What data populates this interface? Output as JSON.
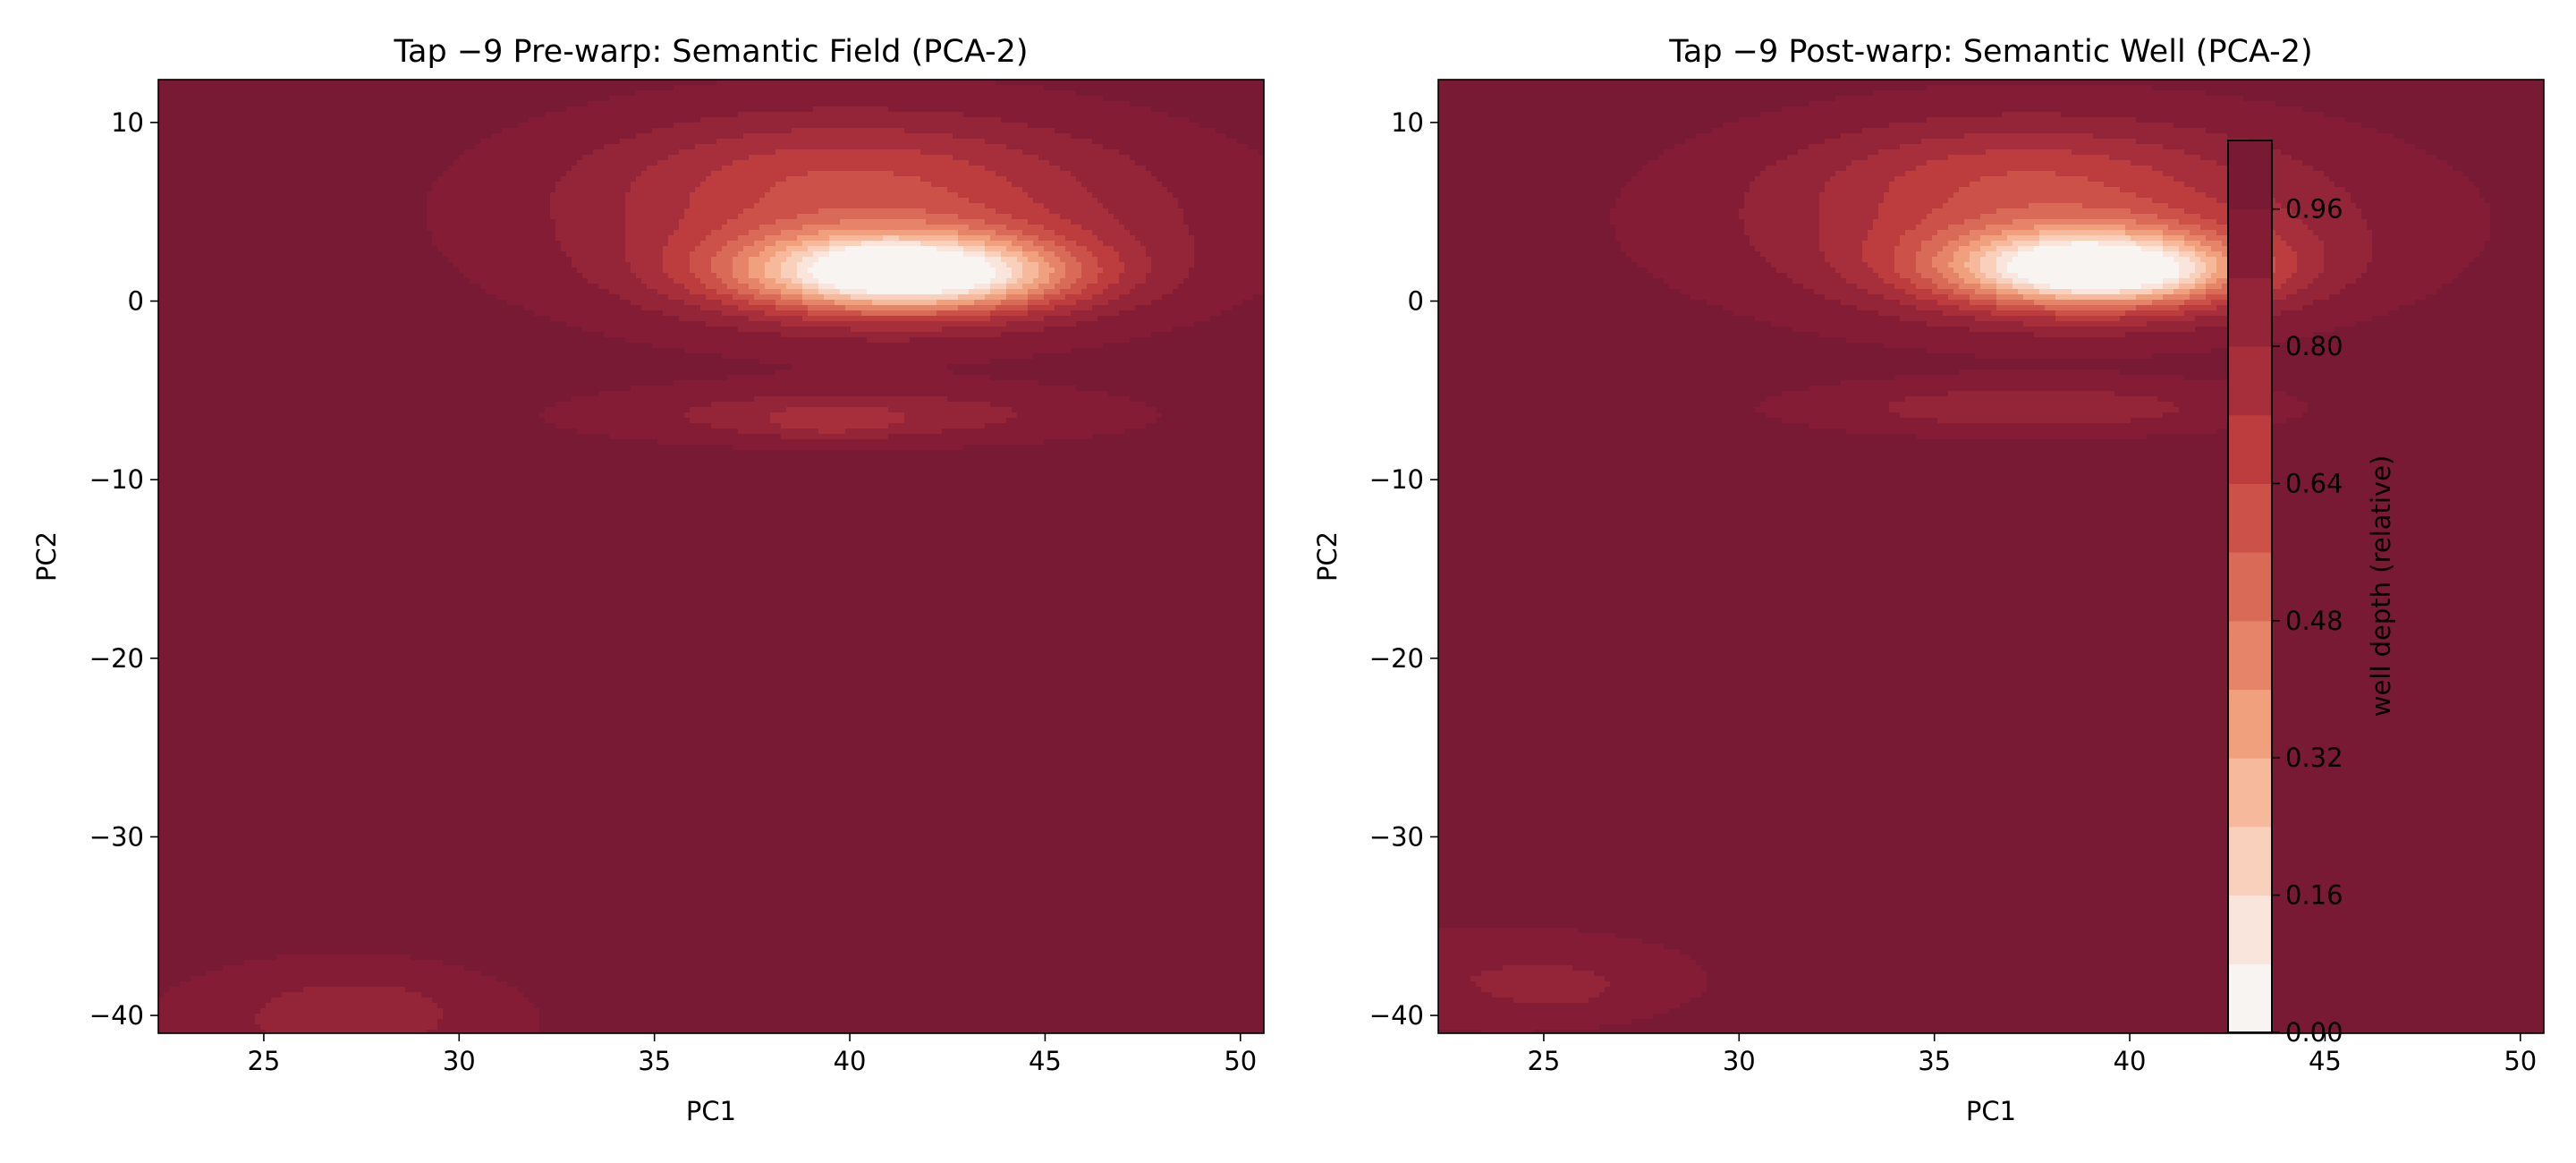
{
  "chart_data": [
    {
      "type": "contour",
      "title": "Tap −9 Pre-warp: Semantic Field (PCA-2)",
      "xlabel": "PC1",
      "ylabel": "PC2",
      "xlim": [
        22.3,
        50.6
      ],
      "ylim": [
        -41.0,
        12.4
      ],
      "xticks": [
        25,
        30,
        35,
        40,
        45,
        50
      ],
      "yticks": [
        10,
        0,
        -10,
        -20,
        -30,
        -40
      ],
      "grid": false,
      "peaks": [
        {
          "x": 41.2,
          "y": 1.6,
          "sx": 3.0,
          "sy": 1.6,
          "a": 0.85
        },
        {
          "x": 40.7,
          "y": 2.0,
          "sx": 0.7,
          "sy": 0.6,
          "a": 0.25
        },
        {
          "x": 42.8,
          "y": 1.3,
          "sx": 2.2,
          "sy": 1.1,
          "a": 0.15
        },
        {
          "x": 40.5,
          "y": 4.5,
          "sx": 5.5,
          "sy": 3.8,
          "a": 0.32
        },
        {
          "x": 39.5,
          "y": 7.5,
          "sx": 4.0,
          "sy": 2.2,
          "a": 0.12
        },
        {
          "x": 40.0,
          "y": -6.4,
          "sx": 4.5,
          "sy": 1.1,
          "a": 0.18
        },
        {
          "x": 39.5,
          "y": -6.8,
          "sx": 1.2,
          "sy": 0.6,
          "a": 0.1
        },
        {
          "x": 27.0,
          "y": -40.5,
          "sx": 3.2,
          "sy": 2.5,
          "a": 0.14
        },
        {
          "x": 27.5,
          "y": -39.5,
          "sx": 1.5,
          "sy": 1.0,
          "a": 0.06
        }
      ]
    },
    {
      "type": "contour",
      "title": "Tap −9 Post-warp: Semantic Well (PCA-2)",
      "xlabel": "PC1",
      "ylabel": "PC2",
      "xlim": [
        22.3,
        50.6
      ],
      "ylim": [
        -41.0,
        12.4
      ],
      "xticks": [
        25,
        30,
        35,
        40,
        45,
        50
      ],
      "yticks": [
        10,
        0,
        -10,
        -20,
        -30,
        -40
      ],
      "grid": false,
      "peaks": [
        {
          "x": 39.0,
          "y": 1.8,
          "sx": 2.8,
          "sy": 1.6,
          "a": 0.85
        },
        {
          "x": 38.6,
          "y": 2.0,
          "sx": 0.8,
          "sy": 0.6,
          "a": 0.25
        },
        {
          "x": 40.2,
          "y": 1.6,
          "sx": 1.6,
          "sy": 0.9,
          "a": 0.15
        },
        {
          "x": 38.0,
          "y": 4.5,
          "sx": 5.5,
          "sy": 3.6,
          "a": 0.32
        },
        {
          "x": 37.0,
          "y": 7.5,
          "sx": 3.5,
          "sy": 2.0,
          "a": 0.12
        },
        {
          "x": 37.5,
          "y": -6.0,
          "sx": 4.0,
          "sy": 1.0,
          "a": 0.18
        },
        {
          "x": 24.0,
          "y": -38.0,
          "sx": 3.5,
          "sy": 2.0,
          "a": 0.12
        },
        {
          "x": 25.5,
          "y": -38.5,
          "sx": 1.0,
          "sy": 0.8,
          "a": 0.06
        }
      ]
    }
  ],
  "colorbar": {
    "label": "well depth (relative)",
    "ticks": [
      "0.00",
      "0.16",
      "0.32",
      "0.48",
      "0.64",
      "0.80",
      "0.96"
    ],
    "levels": [
      0.0,
      0.08,
      0.16,
      0.24,
      0.32,
      0.4,
      0.48,
      0.56,
      0.64,
      0.72,
      0.8,
      0.88,
      0.96,
      1.04
    ],
    "colors": [
      "#f7f4f2",
      "#fae5dc",
      "#f9d0bc",
      "#f6b99b",
      "#f1a07e",
      "#e58468",
      "#d96a57",
      "#cc5249",
      "#bd3c3d",
      "#a72f3c",
      "#942539",
      "#851c36",
      "#781a34"
    ]
  }
}
